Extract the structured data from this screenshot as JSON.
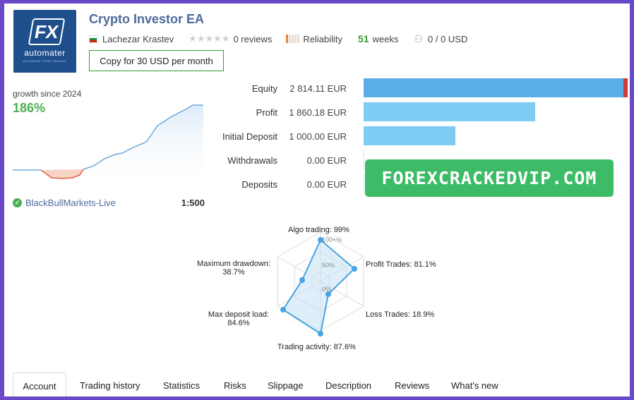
{
  "header": {
    "title": "Crypto Investor EA",
    "author": "Lachezar Krastev",
    "reviews": "0 reviews",
    "reliability_label": "Reliability",
    "weeks_value": "51",
    "weeks_label": "weeks",
    "subscribers": "0 / 0 USD",
    "copy_button": "Copy for 30 USD per month"
  },
  "logo": {
    "brand": "automater",
    "tagline": "AUTOMATE YOUR TRADING",
    "mark": "FX"
  },
  "growth": {
    "label": "growth since 2024",
    "value": "186%",
    "broker": "BlackBullMarkets-Live",
    "leverage": "1:500"
  },
  "stats": [
    {
      "label": "Equity",
      "value": "2 814.11 EUR"
    },
    {
      "label": "Profit",
      "value": "1 860.18 EUR"
    },
    {
      "label": "Initial Deposit",
      "value": "1 000.00 EUR"
    },
    {
      "label": "Withdrawals",
      "value": "0.00 EUR"
    },
    {
      "label": "Deposits",
      "value": "0.00 EUR"
    }
  ],
  "watermark": "FOREXCRACKEDVIP.COM",
  "radar": {
    "algo": "Algo trading: 99%",
    "profit_trades": "Profit Trades: 81.1%",
    "loss_trades": "Loss Trades: 18.9%",
    "activity": "Trading activity: 87.6%",
    "deposit_load_1": "Max deposit load:",
    "deposit_load_2": "84.6%",
    "drawdown_1": "Maximum drawdown:",
    "drawdown_2": "38.7%",
    "scale": [
      "100+%",
      "50%",
      "0%"
    ]
  },
  "tabs": [
    "Account",
    "Trading history",
    "Statistics",
    "Risks",
    "Slippage",
    "Description",
    "Reviews",
    "What's new"
  ],
  "colors": {
    "accent": "#4e6a9a",
    "green": "#4caf50",
    "bar": "#7ecbf3",
    "frame": "#6a4ac9"
  }
}
